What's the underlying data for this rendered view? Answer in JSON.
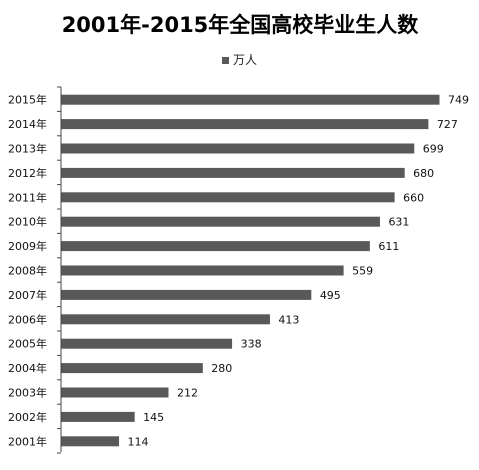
{
  "chart_data": {
    "type": "bar",
    "orientation": "horizontal",
    "title": "2001年-2015年全国高校毕业生人数",
    "categories": [
      "2015年",
      "2014年",
      "2013年",
      "2012年",
      "2011年",
      "2010年",
      "2009年",
      "2008年",
      "2007年",
      "2006年",
      "2005年",
      "2004年",
      "2003年",
      "2002年",
      "2001年"
    ],
    "series": [
      {
        "name": "万人",
        "values": [
          749,
          727,
          699,
          680,
          660,
          631,
          611,
          559,
          495,
          413,
          338,
          280,
          212,
          145,
          114
        ],
        "color": "#595959"
      }
    ],
    "legend": "top-center",
    "grid": false,
    "xlim": [
      0,
      800
    ],
    "xlabel": "",
    "ylabel": ""
  }
}
